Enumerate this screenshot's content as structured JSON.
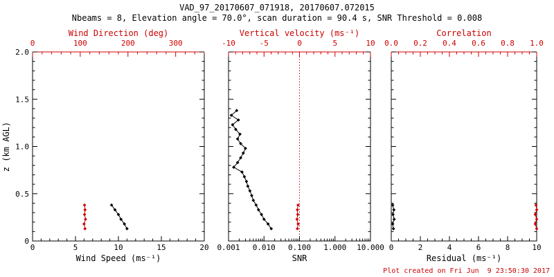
{
  "header": {
    "title": "VAD_97_20170607_071918, 20170607.072015",
    "subtitle": "Nbeams = 8, Elevation angle = 70.0°, scan duration = 90.4 s, SNR Threshold = 0.008"
  },
  "footer": {
    "created": "Plot created on Fri Jun  9 23:50:30 2017"
  },
  "colors": {
    "primary": "#000000",
    "accent": "#cc0000"
  },
  "chart_data": [
    {
      "type": "scatter",
      "panel": "wind",
      "ylabel": "z (km AGL)",
      "ylim": [
        0,
        2
      ],
      "yticks": [
        [
          0,
          "0"
        ],
        [
          0.5,
          "0.5"
        ],
        [
          1.0,
          "1.0"
        ],
        [
          1.5,
          "1.5"
        ],
        [
          2.0,
          "2.0"
        ]
      ],
      "yminor": 0.1,
      "show_y_labels": true,
      "bottom_axis": {
        "label": "Wind Speed (ms⁻¹)",
        "scale": "linear",
        "lim": [
          0,
          20
        ],
        "minor": 1,
        "ticks": [
          [
            0,
            "0"
          ],
          [
            5,
            "5"
          ],
          [
            10,
            "10"
          ],
          [
            15,
            "15"
          ],
          [
            20,
            "20"
          ]
        ]
      },
      "top_axis": {
        "label": "Wind Direction (deg)",
        "scale": "linear",
        "lim": [
          0,
          360
        ],
        "minor": 20,
        "ticks": [
          [
            0,
            "0"
          ],
          [
            100,
            "100"
          ],
          [
            200,
            "200"
          ],
          [
            300,
            "300"
          ]
        ]
      },
      "series": [
        {
          "name": "wind-speed",
          "axis": "bottom",
          "color": "primary",
          "z": [
            0.13,
            0.18,
            0.23,
            0.28,
            0.33,
            0.38
          ],
          "values": [
            11.0,
            10.7,
            10.3,
            10.0,
            9.6,
            9.2
          ]
        },
        {
          "name": "wind-direction",
          "axis": "top",
          "color": "accent",
          "z": [
            0.13,
            0.18,
            0.23,
            0.28,
            0.33,
            0.38
          ],
          "values": [
            110,
            108,
            111,
            109,
            110,
            109
          ]
        }
      ]
    },
    {
      "type": "scatter",
      "panel": "snr",
      "ylim": [
        0,
        2
      ],
      "yticks": [
        [
          0,
          "0"
        ],
        [
          0.5,
          "0.5"
        ],
        [
          1.0,
          "1.0"
        ],
        [
          1.5,
          "1.5"
        ],
        [
          2.0,
          "2.0"
        ]
      ],
      "yminor": 0.1,
      "show_y_labels": false,
      "bottom_axis": {
        "label": "SNR",
        "scale": "log",
        "lim": [
          0.001,
          10
        ],
        "ticks": [
          [
            0.001,
            "0.001"
          ],
          [
            0.01,
            "0.010"
          ],
          [
            0.1,
            "0.100"
          ],
          [
            1,
            "1.000"
          ],
          [
            10,
            "10.000"
          ]
        ]
      },
      "top_axis": {
        "label": "Vertical velocity (ms⁻¹)",
        "scale": "linear",
        "lim": [
          -10,
          10
        ],
        "minor": 1,
        "ticks": [
          [
            -10,
            "-10"
          ],
          [
            -5,
            "-5"
          ],
          [
            0,
            "0"
          ],
          [
            5,
            "5"
          ],
          [
            10,
            "10"
          ]
        ]
      },
      "ref_line": {
        "axis": "top",
        "value": 0
      },
      "series": [
        {
          "name": "snr-profile",
          "axis": "bottom",
          "color": "primary",
          "z": [
            0.13,
            0.18,
            0.23,
            0.28,
            0.33,
            0.38,
            0.43,
            0.48,
            0.53,
            0.58,
            0.63,
            0.68,
            0.73,
            0.78,
            0.83,
            0.88,
            0.93,
            0.98,
            1.03,
            1.08,
            1.13,
            1.18,
            1.23,
            1.28,
            1.33,
            1.38
          ],
          "values": [
            0.016,
            0.013,
            0.01,
            0.0085,
            0.007,
            0.006,
            0.005,
            0.0045,
            0.004,
            0.0035,
            0.0032,
            0.0028,
            0.0024,
            0.0014,
            0.0018,
            0.0022,
            0.0026,
            0.003,
            0.0022,
            0.0018,
            0.0021,
            0.0016,
            0.0013,
            0.0019,
            0.0012,
            0.0017
          ]
        },
        {
          "name": "vertical-velocity",
          "axis": "top",
          "color": "accent",
          "z": [
            0.13,
            0.18,
            0.23,
            0.28,
            0.33,
            0.38
          ],
          "values": [
            -0.3,
            -0.2,
            -0.35,
            -0.25,
            -0.3,
            -0.2
          ]
        }
      ]
    },
    {
      "type": "scatter",
      "panel": "residual",
      "ylim": [
        0,
        2
      ],
      "yticks": [
        [
          0,
          "0"
        ],
        [
          0.5,
          "0.5"
        ],
        [
          1.0,
          "1.0"
        ],
        [
          1.5,
          "1.5"
        ],
        [
          2.0,
          "2.0"
        ]
      ],
      "yminor": 0.1,
      "show_y_labels": false,
      "bottom_axis": {
        "label": "Residual (ms⁻¹)",
        "scale": "linear",
        "lim": [
          0,
          10
        ],
        "minor": 0.5,
        "ticks": [
          [
            0,
            "0"
          ],
          [
            2,
            "2"
          ],
          [
            4,
            "4"
          ],
          [
            6,
            "6"
          ],
          [
            8,
            "8"
          ],
          [
            10,
            "10"
          ]
        ]
      },
      "top_axis": {
        "label": "Correlation",
        "scale": "linear",
        "lim": [
          0,
          1
        ],
        "minor": 0.05,
        "ticks": [
          [
            0,
            "0.0"
          ],
          [
            0.2,
            "0.2"
          ],
          [
            0.4,
            "0.4"
          ],
          [
            0.6,
            "0.6"
          ],
          [
            0.8,
            "0.8"
          ],
          [
            1,
            "1.0"
          ]
        ]
      },
      "series": [
        {
          "name": "residual",
          "axis": "bottom",
          "color": "primary",
          "z": [
            0.13,
            0.18,
            0.23,
            0.28,
            0.33,
            0.38
          ],
          "values": [
            0.15,
            0.1,
            0.2,
            0.12,
            0.18,
            0.1
          ]
        },
        {
          "name": "correlation",
          "axis": "top",
          "color": "accent",
          "z": [
            0.13,
            0.18,
            0.23,
            0.28,
            0.33,
            0.38
          ],
          "values": [
            1.0,
            0.99,
            1.0,
            0.99,
            1.0,
            0.995
          ]
        }
      ]
    }
  ]
}
